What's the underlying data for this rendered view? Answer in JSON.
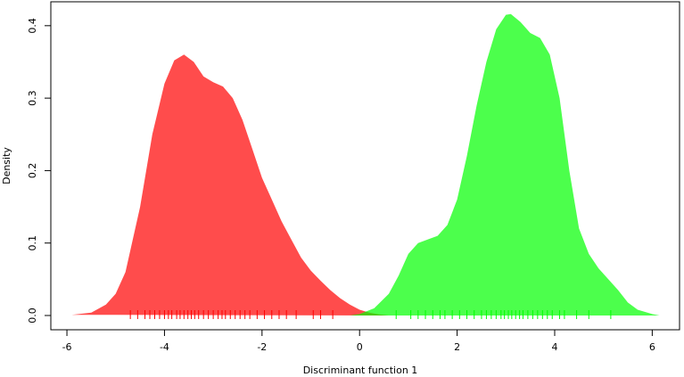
{
  "chart_data": {
    "type": "density",
    "xlabel": "Discriminant function 1",
    "ylabel": "Density",
    "xlim": [
      -6.33,
      6.56
    ],
    "ylim": [
      -0.0197,
      0.433
    ],
    "xticks": [
      -6,
      -4,
      -2,
      0,
      2,
      4,
      6
    ],
    "yticks": [
      {
        "value": 0,
        "label": "0.0"
      },
      0.1,
      0.2,
      0.3,
      0.4
    ],
    "opacity": 0.7,
    "series": [
      {
        "color": "#ff0000",
        "x": [
          -5.9,
          -5.5,
          -5.2,
          -5.0,
          -4.8,
          -4.5,
          -4.25,
          -4.0,
          -3.8,
          -3.6,
          -3.4,
          -3.2,
          -3.0,
          -2.8,
          -2.6,
          -2.4,
          -2.2,
          -2.0,
          -1.8,
          -1.6,
          -1.4,
          -1.2,
          -1.0,
          -0.8,
          -0.6,
          -0.4,
          -0.2,
          0.0,
          0.2,
          0.4,
          0.6
        ],
        "values": [
          0.001,
          0.004,
          0.015,
          0.03,
          0.06,
          0.15,
          0.25,
          0.32,
          0.352,
          0.36,
          0.35,
          0.33,
          0.322,
          0.316,
          0.3,
          0.27,
          0.23,
          0.19,
          0.16,
          0.13,
          0.105,
          0.08,
          0.062,
          0.048,
          0.035,
          0.024,
          0.015,
          0.008,
          0.004,
          0.0015,
          0.0
        ],
        "rug": [
          -4.7,
          -4.55,
          -4.4,
          -4.3,
          -4.2,
          -4.1,
          -4.0,
          -3.92,
          -3.85,
          -3.75,
          -3.68,
          -3.6,
          -3.52,
          -3.45,
          -3.38,
          -3.3,
          -3.2,
          -3.1,
          -3.0,
          -2.9,
          -2.82,
          -2.75,
          -2.65,
          -2.55,
          -2.45,
          -2.35,
          -2.25,
          -2.1,
          -1.95,
          -1.8,
          -1.65,
          -1.5,
          -1.3,
          -0.95,
          -0.8,
          -0.55
        ]
      },
      {
        "color": "#00ff00",
        "x": [
          -0.2,
          0.0,
          0.3,
          0.6,
          0.8,
          1.0,
          1.2,
          1.4,
          1.6,
          1.8,
          2.0,
          2.2,
          2.4,
          2.6,
          2.8,
          3.0,
          3.1,
          3.3,
          3.5,
          3.7,
          3.9,
          4.1,
          4.3,
          4.5,
          4.7,
          4.9,
          5.1,
          5.3,
          5.5,
          5.7,
          6.0,
          6.15
        ],
        "values": [
          0.0,
          0.002,
          0.01,
          0.03,
          0.055,
          0.085,
          0.1,
          0.105,
          0.11,
          0.125,
          0.16,
          0.22,
          0.29,
          0.35,
          0.395,
          0.415,
          0.416,
          0.405,
          0.39,
          0.383,
          0.36,
          0.3,
          0.2,
          0.12,
          0.085,
          0.065,
          0.05,
          0.035,
          0.018,
          0.008,
          0.002,
          0.0
        ],
        "rug": [
          0.75,
          1.05,
          1.2,
          1.35,
          1.5,
          1.65,
          1.75,
          1.9,
          2.05,
          2.2,
          2.35,
          2.5,
          2.6,
          2.7,
          2.8,
          2.9,
          2.97,
          3.05,
          3.12,
          3.2,
          3.28,
          3.35,
          3.45,
          3.55,
          3.65,
          3.75,
          3.85,
          3.95,
          4.1,
          4.2,
          4.45,
          4.7,
          5.15
        ]
      }
    ]
  }
}
